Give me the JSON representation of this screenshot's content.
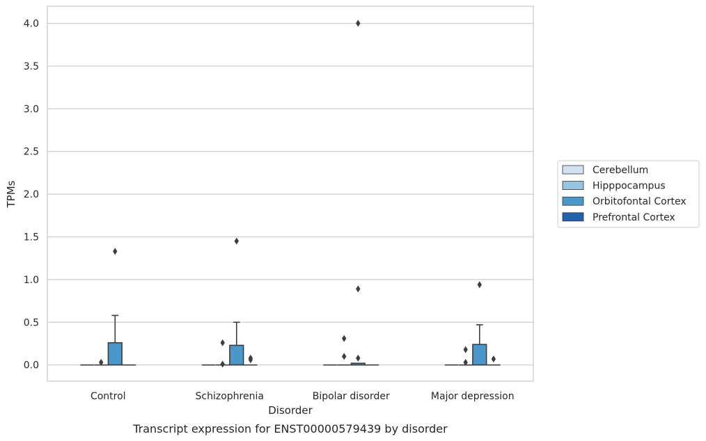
{
  "chart_data": {
    "type": "box",
    "caption": "Transcript expression for ENST00000579439 by disorder",
    "xlabel": "Disorder",
    "ylabel": "TPMs",
    "ylim": [
      -0.19,
      4.2
    ],
    "yticks": [
      0.0,
      0.5,
      1.0,
      1.5,
      2.0,
      2.5,
      3.0,
      3.5,
      4.0
    ],
    "ytick_labels": [
      "0.0",
      "0.5",
      "1.0",
      "1.5",
      "2.0",
      "2.5",
      "3.0",
      "3.5",
      "4.0"
    ],
    "grid": "horizontal",
    "legend_position": "right",
    "categories": [
      "Control",
      "Schizophrenia",
      "Bipolar disorder",
      "Major depression"
    ],
    "series": [
      {
        "name": "Cerebellum",
        "color": "#d0e1f2",
        "boxes": [
          {
            "min": 0,
            "q1": 0,
            "median": 0,
            "q3": 0,
            "max": 0,
            "outliers": []
          },
          {
            "min": 0,
            "q1": 0,
            "median": 0,
            "q3": 0,
            "max": 0,
            "outliers": []
          },
          {
            "min": 0,
            "q1": 0,
            "median": 0,
            "q3": 0,
            "max": 0,
            "outliers": []
          },
          {
            "min": 0,
            "q1": 0,
            "median": 0,
            "q3": 0,
            "max": 0,
            "outliers": []
          }
        ]
      },
      {
        "name": "Hipppocampus",
        "color": "#94c4df",
        "boxes": [
          {
            "min": 0,
            "q1": 0,
            "median": 0,
            "q3": 0,
            "max": 0,
            "outliers": [
              0.03
            ]
          },
          {
            "min": 0,
            "q1": 0,
            "median": 0,
            "q3": 0,
            "max": 0,
            "outliers": [
              0.26,
              0.01
            ]
          },
          {
            "min": 0,
            "q1": 0,
            "median": 0,
            "q3": 0,
            "max": 0,
            "outliers": [
              0.31,
              0.1
            ]
          },
          {
            "min": 0,
            "q1": 0,
            "median": 0,
            "q3": 0,
            "max": 0,
            "outliers": [
              0.03,
              0.18
            ]
          }
        ]
      },
      {
        "name": "Orbitofontal Cortex",
        "color": "#4a98c9",
        "boxes": [
          {
            "min": 0,
            "q1": 0,
            "median": 0,
            "q3": 0.26,
            "max": 0.58,
            "outliers": [
              1.33
            ]
          },
          {
            "min": 0,
            "q1": 0,
            "median": 0,
            "q3": 0.23,
            "max": 0.5,
            "outliers": [
              1.45
            ]
          },
          {
            "min": 0,
            "q1": 0,
            "median": 0,
            "q3": 0.02,
            "max": 0.02,
            "outliers": [
              4.0,
              0.89,
              0.08
            ]
          },
          {
            "min": 0,
            "q1": 0,
            "median": 0,
            "q3": 0.24,
            "max": 0.47,
            "outliers": [
              0.94
            ]
          }
        ]
      },
      {
        "name": "Prefrontal Cortex",
        "color": "#2164ab",
        "boxes": [
          {
            "min": 0,
            "q1": 0,
            "median": 0,
            "q3": 0,
            "max": 0,
            "outliers": []
          },
          {
            "min": 0,
            "q1": 0,
            "median": 0,
            "q3": 0,
            "max": 0,
            "outliers": [
              0.08,
              0.06
            ]
          },
          {
            "min": 0,
            "q1": 0,
            "median": 0,
            "q3": 0,
            "max": 0,
            "outliers": []
          },
          {
            "min": 0,
            "q1": 0,
            "median": 0,
            "q3": 0,
            "max": 0,
            "outliers": [
              0.07
            ]
          }
        ]
      }
    ]
  }
}
